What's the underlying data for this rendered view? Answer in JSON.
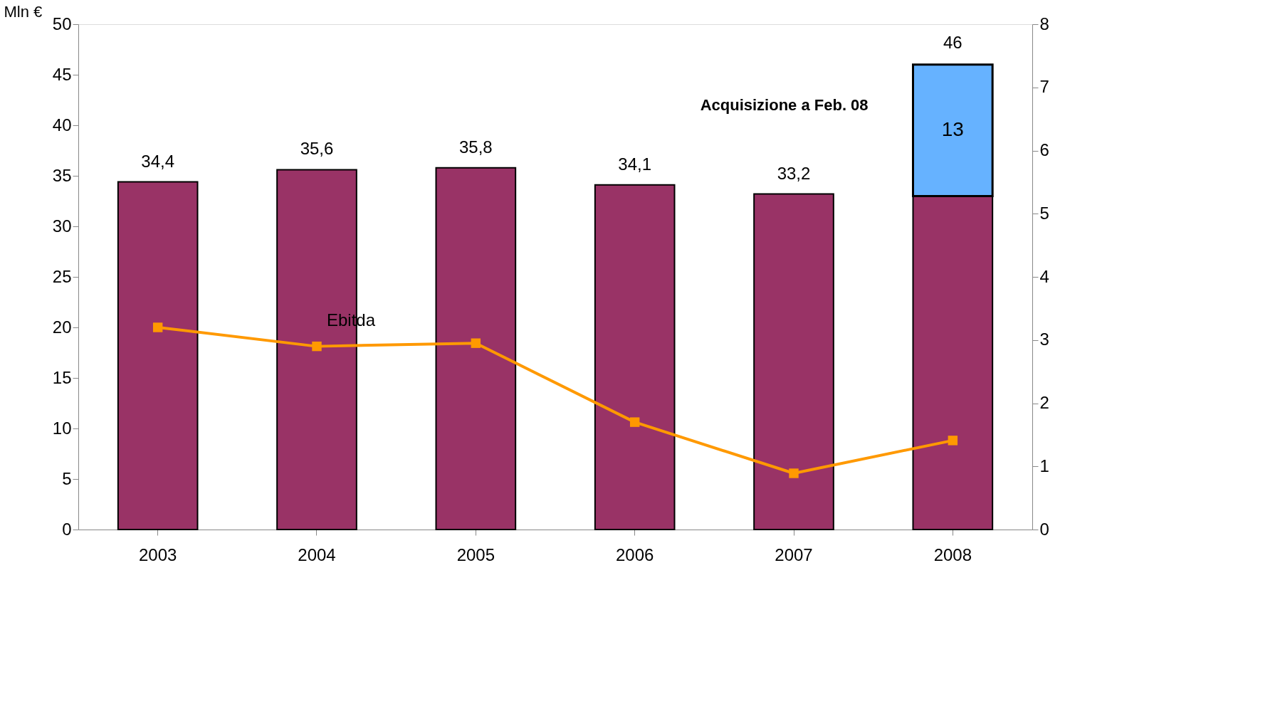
{
  "chart_data": {
    "type": "bar",
    "stacked": true,
    "ylabel": "Mln €",
    "categories": [
      "2003",
      "2004",
      "2005",
      "2006",
      "2007",
      "2008"
    ],
    "series": [
      {
        "color": "#993366",
        "values": [
          34.4,
          35.6,
          35.8,
          34.1,
          33.2,
          33
        ],
        "value_labels": [
          "34,4",
          "35,6",
          "35,8",
          "34,1",
          "33,2",
          null
        ]
      },
      {
        "color": "#66b2ff",
        "values": [
          null,
          null,
          null,
          null,
          null,
          13
        ],
        "value_labels": [
          null,
          null,
          null,
          null,
          null,
          "13"
        ]
      },
      {
        "type": "line",
        "name": "Ebitda",
        "axis": "y2",
        "color": "#ff9900",
        "marker": "square",
        "values": [
          3.2,
          2.9,
          2.95,
          1.7,
          0.89,
          1.41
        ]
      }
    ],
    "totals": [
      null,
      null,
      null,
      null,
      null,
      "46"
    ],
    "ylim": [
      0,
      50
    ],
    "yticks": [
      0,
      5,
      10,
      15,
      20,
      25,
      30,
      35,
      40,
      45,
      50
    ],
    "y2lim": [
      0,
      8
    ],
    "y2ticks": [
      0,
      1,
      2,
      3,
      4,
      5,
      6,
      7,
      8
    ],
    "grid": false,
    "annotations": [
      "Acquisizione a Feb. 08"
    ]
  }
}
